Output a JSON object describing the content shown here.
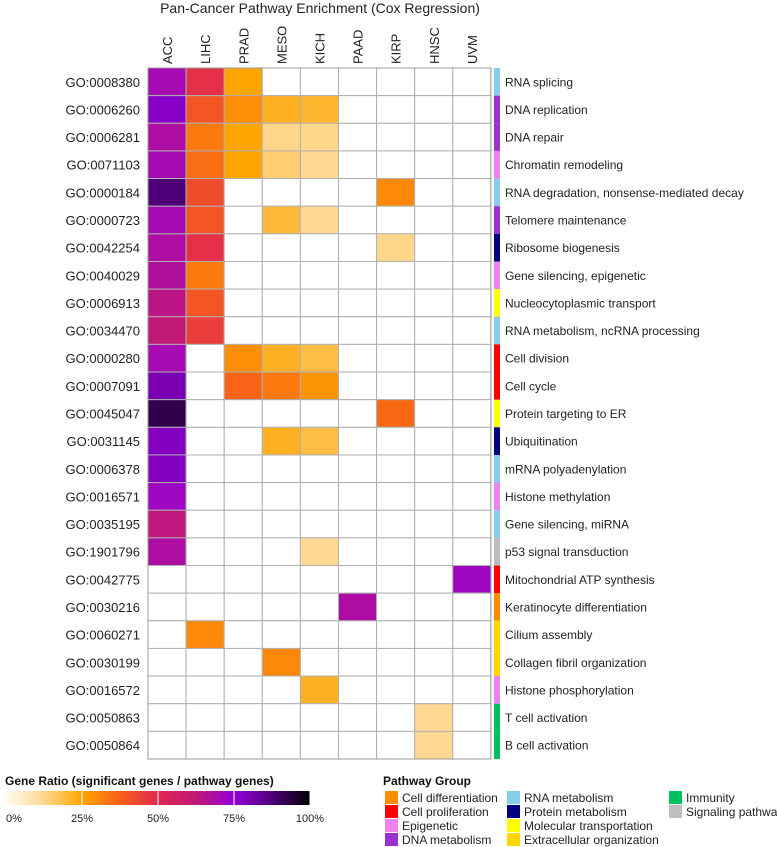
{
  "chart_data": {
    "type": "heatmap",
    "title": "Pan-Cancer Pathway Enrichment (Cox Regression)",
    "columns": [
      "ACC",
      "LIHC",
      "PRAD",
      "MESO",
      "KICH",
      "PAAD",
      "KIRP",
      "HNSC",
      "UVM"
    ],
    "rows": [
      {
        "id": "GO:0008380",
        "pathway": "RNA splicing",
        "group": "RNA metabolism",
        "values": [
          0.7,
          0.48,
          0.25,
          null,
          null,
          null,
          null,
          null,
          null
        ]
      },
      {
        "id": "GO:0006260",
        "pathway": "DNA replication",
        "group": "DNA metabolism",
        "values": [
          0.77,
          0.4,
          0.29,
          0.22,
          0.21,
          null,
          null,
          null,
          null
        ]
      },
      {
        "id": "GO:0006281",
        "pathway": "DNA repair",
        "group": "DNA metabolism",
        "values": [
          0.68,
          0.33,
          0.25,
          0.13,
          0.13,
          null,
          null,
          null,
          null
        ]
      },
      {
        "id": "GO:0071103",
        "pathway": "Chromatin remodeling",
        "group": "Epigenetic",
        "values": [
          0.7,
          0.35,
          0.25,
          0.15,
          0.12,
          null,
          null,
          null,
          null
        ]
      },
      {
        "id": "GO:0000184",
        "pathway": "RNA degradation, nonsense-mediated decay",
        "group": "RNA metabolism",
        "values": [
          0.88,
          0.42,
          null,
          null,
          null,
          null,
          0.3,
          null,
          null
        ]
      },
      {
        "id": "GO:0000723",
        "pathway": "Telomere maintenance",
        "group": "DNA metabolism",
        "values": [
          0.7,
          0.4,
          null,
          0.2,
          0.12,
          null,
          null,
          null,
          null
        ]
      },
      {
        "id": "GO:0042254",
        "pathway": "Ribosome biogenesis",
        "group": "Protein metabolism",
        "values": [
          0.68,
          0.48,
          null,
          null,
          null,
          null,
          0.13,
          null,
          null
        ]
      },
      {
        "id": "GO:0040029",
        "pathway": "Gene silencing, epigenetic",
        "group": "Epigenetic",
        "values": [
          0.67,
          0.33,
          null,
          null,
          null,
          null,
          null,
          null,
          null
        ]
      },
      {
        "id": "GO:0006913",
        "pathway": "Nucleocytoplasmic transport",
        "group": "Molecular transportation",
        "values": [
          0.64,
          0.4,
          null,
          null,
          null,
          null,
          null,
          null,
          null
        ]
      },
      {
        "id": "GO:0034470",
        "pathway": "RNA metabolism, ncRNA processing",
        "group": "RNA metabolism",
        "values": [
          0.62,
          0.45,
          null,
          null,
          null,
          null,
          null,
          null,
          null
        ]
      },
      {
        "id": "GO:0000280",
        "pathway": "Cell division",
        "group": "Cell proliferation",
        "values": [
          0.7,
          null,
          0.29,
          0.22,
          0.19,
          null,
          null,
          null,
          null
        ]
      },
      {
        "id": "GO:0007091",
        "pathway": "Cell cycle",
        "group": "Cell proliferation",
        "values": [
          0.8,
          null,
          0.37,
          0.33,
          0.28,
          null,
          null,
          null,
          null
        ]
      },
      {
        "id": "GO:0045047",
        "pathway": "Protein targeting to ER",
        "group": "Molecular transportation",
        "values": [
          0.92,
          null,
          null,
          null,
          null,
          null,
          0.36,
          null,
          null
        ]
      },
      {
        "id": "GO:0031145",
        "pathway": "Ubiquitination",
        "group": "Protein metabolism",
        "values": [
          0.78,
          null,
          null,
          0.22,
          0.19,
          null,
          null,
          null,
          null
        ]
      },
      {
        "id": "GO:0006378",
        "pathway": "mRNA polyadenylation",
        "group": "RNA metabolism",
        "values": [
          0.78,
          null,
          null,
          null,
          null,
          null,
          null,
          null,
          null
        ]
      },
      {
        "id": "GO:0016571",
        "pathway": "Histone methylation",
        "group": "Epigenetic",
        "values": [
          0.72,
          null,
          null,
          null,
          null,
          null,
          null,
          null,
          null
        ]
      },
      {
        "id": "GO:0035195",
        "pathway": "Gene silencing, miRNA",
        "group": "RNA metabolism",
        "values": [
          0.63,
          null,
          null,
          null,
          null,
          null,
          null,
          null,
          null
        ]
      },
      {
        "id": "GO:1901796",
        "pathway": "p53 signal transduction",
        "group": "Signaling pathway",
        "values": [
          0.68,
          null,
          null,
          null,
          0.12,
          null,
          null,
          null,
          null
        ]
      },
      {
        "id": "GO:0042775",
        "pathway": "Mitochondrial ATP synthesis",
        "group": "Cell proliferation",
        "values": [
          null,
          null,
          null,
          null,
          null,
          null,
          null,
          null,
          0.72
        ]
      },
      {
        "id": "GO:0030216",
        "pathway": "Keratinocyte differentiation",
        "group": "Cell differentiation",
        "values": [
          null,
          null,
          null,
          null,
          null,
          0.68,
          null,
          null,
          null
        ]
      },
      {
        "id": "GO:0060271",
        "pathway": "Cilium assembly",
        "group": "Extracellular organization",
        "values": [
          null,
          0.3,
          null,
          null,
          null,
          null,
          null,
          null,
          null
        ]
      },
      {
        "id": "GO:0030199",
        "pathway": "Collagen fibril organization",
        "group": "Extracellular organization",
        "values": [
          null,
          null,
          null,
          0.3,
          null,
          null,
          null,
          null,
          null
        ]
      },
      {
        "id": "GO:0016572",
        "pathway": "Histone phosphorylation",
        "group": "Epigenetic",
        "values": [
          null,
          null,
          null,
          null,
          0.22,
          null,
          null,
          null,
          null
        ]
      },
      {
        "id": "GO:0050863",
        "pathway": "T cell activation",
        "group": "Immunity",
        "values": [
          null,
          null,
          null,
          null,
          null,
          null,
          null,
          0.12,
          null
        ]
      },
      {
        "id": "GO:0050864",
        "pathway": "B cell activation",
        "group": "Immunity",
        "values": [
          null,
          null,
          null,
          null,
          null,
          null,
          null,
          0.12,
          null
        ]
      }
    ],
    "colorbar": {
      "title": "Gene Ratio (significant genes / pathway genes)",
      "range": [
        0,
        1
      ],
      "ticks": [
        "0%",
        "25%",
        "50%",
        "75%",
        "100%"
      ],
      "stops": [
        "#fffbf0",
        "#ffd890",
        "#ffa500",
        "#f86018",
        "#e02850",
        "#c0187a",
        "#9400d8",
        "#50007a",
        "#000000"
      ]
    },
    "legend": {
      "title": "Pathway Group",
      "items": [
        {
          "label": "Cell differentiation",
          "color": "#ff8c00"
        },
        {
          "label": "Cell proliferation",
          "color": "#ff0000"
        },
        {
          "label": "Epigenetic",
          "color": "#ee82ee"
        },
        {
          "label": "DNA metabolism",
          "color": "#9932cc"
        },
        {
          "label": "RNA metabolism",
          "color": "#87ceeb"
        },
        {
          "label": "Protein metabolism",
          "color": "#000080"
        },
        {
          "label": "Molecular transportation",
          "color": "#ffff00"
        },
        {
          "label": "Extracellular organization",
          "color": "#ffd700"
        },
        {
          "label": "Immunity",
          "color": "#00c060"
        },
        {
          "label": "Signaling pathway",
          "color": "#bebebe"
        }
      ]
    }
  }
}
